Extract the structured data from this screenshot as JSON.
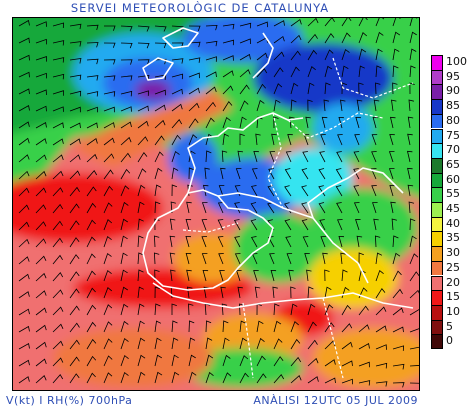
{
  "header": {
    "title": "SERVEI METEOROLÒGIC DE CATALUNYA"
  },
  "footer": {
    "variables": "V(kt) I RH(%) 700hPa",
    "analysis": "ANÀLISI 12UTC 05 JUL 2009"
  },
  "legend": {
    "levels": [
      {
        "label": "100",
        "color": "#ee00ee"
      },
      {
        "label": "95",
        "color": "#b03cc8"
      },
      {
        "label": "90",
        "color": "#7a1fa8"
      },
      {
        "label": "85",
        "color": "#1838c8"
      },
      {
        "label": "80",
        "color": "#2a6cf0"
      },
      {
        "label": "75",
        "color": "#22aaf0"
      },
      {
        "label": "70",
        "color": "#36e4f0"
      },
      {
        "label": "65",
        "color": "#1c7a2c"
      },
      {
        "label": "60",
        "color": "#16a83a"
      },
      {
        "label": "55",
        "color": "#38d04a"
      },
      {
        "label": "45",
        "color": "#9ef050"
      },
      {
        "label": "40",
        "color": "#f4f440"
      },
      {
        "label": "35",
        "color": "#f6d000"
      },
      {
        "label": "30",
        "color": "#f4a020"
      },
      {
        "label": "25",
        "color": "#f07840"
      },
      {
        "label": "20",
        "color": "#f07070"
      },
      {
        "label": "15",
        "color": "#f01818"
      },
      {
        "label": "10",
        "color": "#b81010"
      },
      {
        "label": "5",
        "color": "#801010"
      },
      {
        "label": "0",
        "color": "#400808"
      }
    ]
  }
}
